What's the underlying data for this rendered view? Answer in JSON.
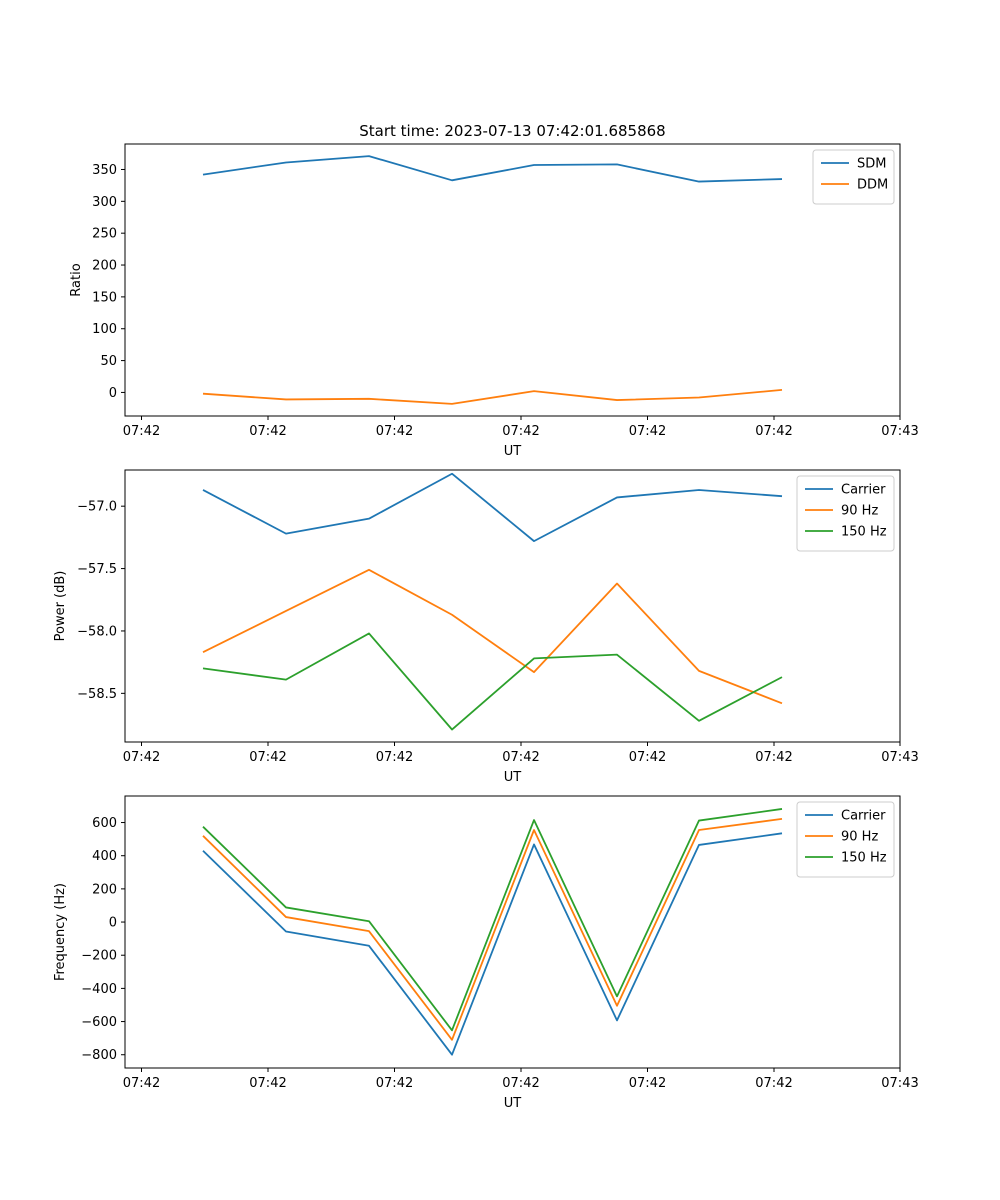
{
  "figure": {
    "title": "Start time: 2023-07-13 07:42:01.685868"
  },
  "colors": {
    "blue": "#1f77b4",
    "orange": "#ff7f0e",
    "green": "#2ca02c"
  },
  "chart_data": [
    {
      "type": "line",
      "ylabel": "Ratio",
      "xlabel": "UT",
      "x_tick_labels": [
        "07:42",
        "07:42",
        "07:42",
        "07:42",
        "07:42",
        "07:42",
        "07:43"
      ],
      "y_ticks": [
        0,
        50,
        100,
        150,
        200,
        250,
        300,
        350
      ],
      "y_tick_labels": [
        "0",
        "50",
        "100",
        "150",
        "200",
        "250",
        "300",
        "350"
      ],
      "ylim": [
        -37,
        390
      ],
      "legend_position": "top-right",
      "series": [
        {
          "name": "SDM",
          "color": "#1f77b4",
          "values": [
            342,
            361,
            371,
            333,
            357,
            358,
            331,
            335
          ]
        },
        {
          "name": "DDM",
          "color": "#ff7f0e",
          "values": [
            -2,
            -11,
            -10,
            -18,
            2,
            -12,
            -8,
            4
          ]
        }
      ]
    },
    {
      "type": "line",
      "ylabel": "Power (dB)",
      "xlabel": "UT",
      "x_tick_labels": [
        "07:42",
        "07:42",
        "07:42",
        "07:42",
        "07:42",
        "07:42",
        "07:43"
      ],
      "y_ticks": [
        -57.0,
        -57.5,
        -58.0,
        -58.5
      ],
      "y_tick_labels": [
        "−57.0",
        "−57.5",
        "−58.0",
        "−58.5"
      ],
      "ylim": [
        -58.89,
        -56.71
      ],
      "legend_position": "top-right",
      "series": [
        {
          "name": "Carrier",
          "color": "#1f77b4",
          "values": [
            -56.87,
            -57.22,
            -57.1,
            -56.74,
            -57.28,
            -56.93,
            -56.87,
            -56.92
          ]
        },
        {
          "name": "90 Hz",
          "color": "#ff7f0e",
          "values": [
            -58.17,
            -57.84,
            -57.51,
            -57.87,
            -58.33,
            -57.62,
            -58.32,
            -58.58
          ]
        },
        {
          "name": "150 Hz",
          "color": "#2ca02c",
          "values": [
            -58.3,
            -58.39,
            -58.02,
            -58.79,
            -58.22,
            -58.19,
            -58.72,
            -58.37
          ]
        }
      ]
    },
    {
      "type": "line",
      "ylabel": "Frequency (Hz)",
      "xlabel": "UT",
      "x_tick_labels": [
        "07:42",
        "07:42",
        "07:42",
        "07:42",
        "07:42",
        "07:42",
        "07:43"
      ],
      "y_ticks": [
        -800,
        -600,
        -400,
        -200,
        0,
        200,
        400,
        600
      ],
      "y_tick_labels": [
        "−800",
        "−600",
        "−400",
        "−200",
        "0",
        "200",
        "400",
        "600"
      ],
      "ylim": [
        -880,
        760
      ],
      "legend_position": "top-right",
      "series": [
        {
          "name": "Carrier",
          "color": "#1f77b4",
          "values": [
            430,
            -57,
            -143,
            -800,
            468,
            -593,
            465,
            535
          ]
        },
        {
          "name": "90 Hz",
          "color": "#ff7f0e",
          "values": [
            520,
            30,
            -55,
            -710,
            555,
            -505,
            555,
            622
          ]
        },
        {
          "name": "150 Hz",
          "color": "#2ca02c",
          "values": [
            575,
            88,
            5,
            -653,
            615,
            -448,
            612,
            682
          ]
        }
      ]
    }
  ]
}
